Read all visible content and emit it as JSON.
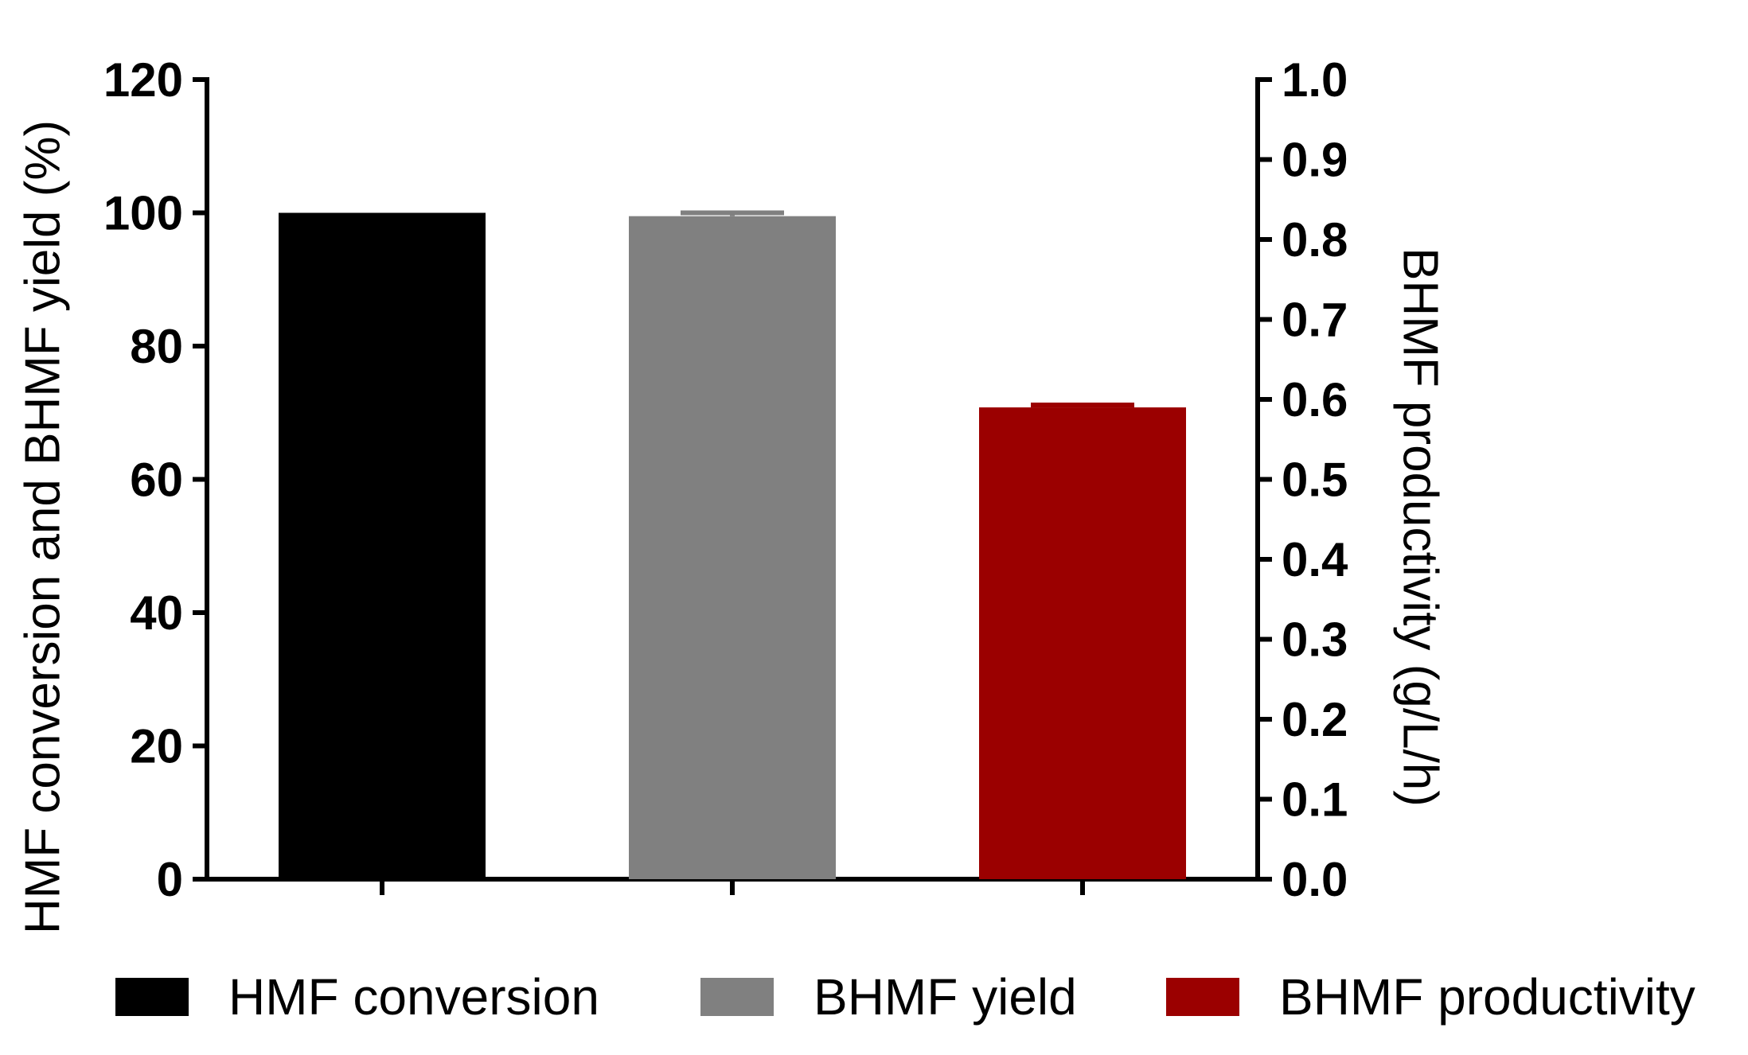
{
  "chart_data": {
    "type": "bar",
    "categories": [
      "HMF conversion",
      "BHMF yield",
      "BHMF productivity"
    ],
    "series": [
      {
        "name": "HMF conversion",
        "axis": "left",
        "category_index": 0,
        "value": 100,
        "error": 0,
        "color": "#000000"
      },
      {
        "name": "BHMF yield",
        "axis": "left",
        "category_index": 1,
        "value": 99.5,
        "error": 0.5,
        "color": "#808080"
      },
      {
        "name": "BHMF productivity",
        "axis": "right",
        "category_index": 2,
        "value": 0.59,
        "error": 0.003,
        "color": "#9b0000"
      }
    ],
    "ylabel": "HMF conversion and BHMF yield (%)",
    "y2label": "BHMF productivity (g/L/h)",
    "xlabel": "",
    "title": "",
    "ylim": [
      0,
      120
    ],
    "y2lim": [
      0,
      1.0
    ],
    "yticks": [
      "0",
      "20",
      "40",
      "60",
      "80",
      "100",
      "120"
    ],
    "y2ticks": [
      "0.0",
      "0.1",
      "0.2",
      "0.3",
      "0.4",
      "0.5",
      "0.6",
      "0.7",
      "0.8",
      "0.9",
      "1.0"
    ],
    "grid": false,
    "legend_position": "bottom"
  }
}
